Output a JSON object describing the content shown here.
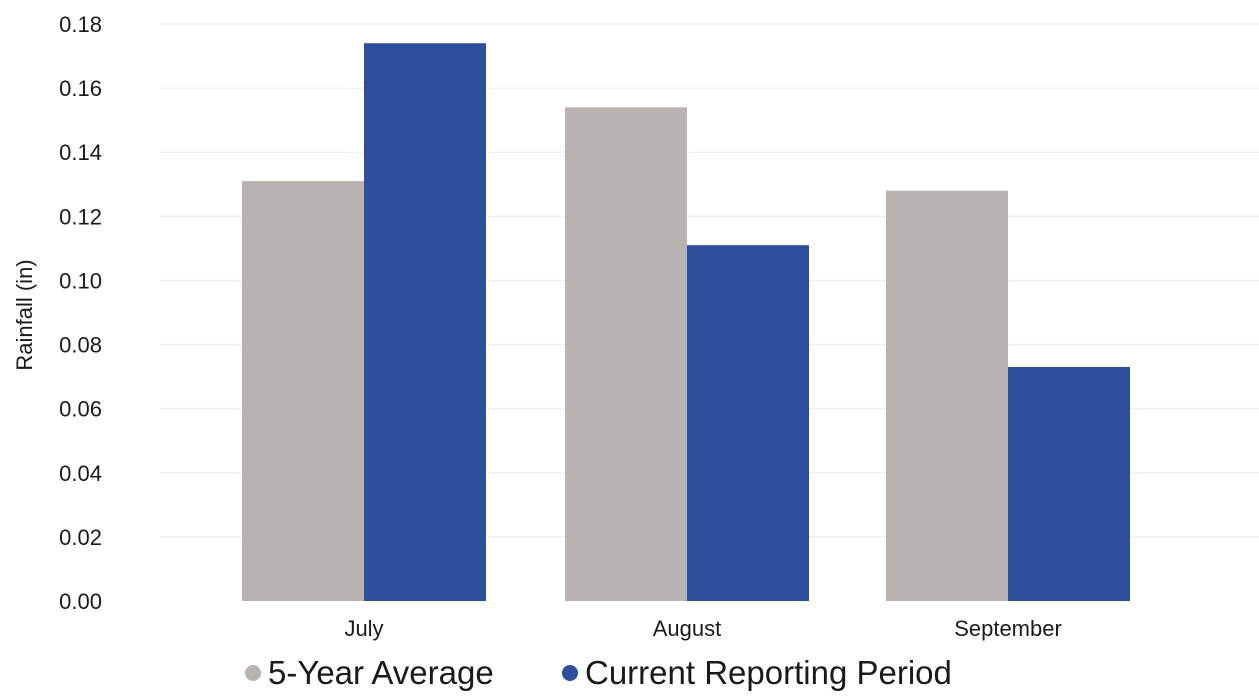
{
  "chart_data": {
    "type": "bar",
    "title": "",
    "xlabel": "",
    "ylabel": "Rainfall (in)",
    "categories": [
      "July",
      "August",
      "September"
    ],
    "series": [
      {
        "name": "5-Year Average",
        "values": [
          0.131,
          0.154,
          0.128
        ],
        "color": "#b8b3b0"
      },
      {
        "name": "Current Reporting Period",
        "values": [
          0.174,
          0.111,
          0.073
        ],
        "color": "#2f4f9c"
      }
    ],
    "ylim": [
      0,
      0.18
    ],
    "yticks": [
      "0.00",
      "0.02",
      "0.04",
      "0.06",
      "0.08",
      "0.10",
      "0.12",
      "0.14",
      "0.16",
      "0.18"
    ],
    "grid": true,
    "legend_position": "bottom"
  }
}
